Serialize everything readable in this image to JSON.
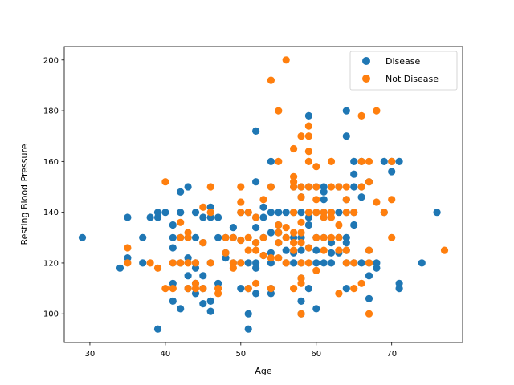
{
  "chart_data": {
    "type": "scatter",
    "title": "",
    "xlabel": "Age",
    "ylabel": "Resting Blood Pressure",
    "xlim": [
      26.6,
      79.4
    ],
    "ylim": [
      88.7,
      205.3
    ],
    "xticks": [
      30,
      40,
      50,
      60,
      70
    ],
    "yticks": [
      100,
      120,
      140,
      160,
      180,
      200
    ],
    "grid": false,
    "legend_position": "top-right",
    "series": [
      {
        "name": "Disease",
        "color": "#1f77b4",
        "points": [
          [
            29,
            130
          ],
          [
            34,
            118
          ],
          [
            35,
            138
          ],
          [
            35,
            122
          ],
          [
            37,
            130
          ],
          [
            37,
            120
          ],
          [
            38,
            138
          ],
          [
            39,
            94
          ],
          [
            39,
            138
          ],
          [
            39,
            140
          ],
          [
            40,
            140
          ],
          [
            41,
            130
          ],
          [
            41,
            126
          ],
          [
            41,
            120
          ],
          [
            41,
            112
          ],
          [
            41,
            105
          ],
          [
            41,
            135
          ],
          [
            42,
            140
          ],
          [
            42,
            148
          ],
          [
            42,
            130
          ],
          [
            42,
            120
          ],
          [
            42,
            102
          ],
          [
            43,
            150
          ],
          [
            43,
            130
          ],
          [
            43,
            122
          ],
          [
            43,
            115
          ],
          [
            43,
            110
          ],
          [
            44,
            140
          ],
          [
            44,
            130
          ],
          [
            44,
            120
          ],
          [
            44,
            118
          ],
          [
            44,
            112
          ],
          [
            44,
            108
          ],
          [
            45,
            138
          ],
          [
            45,
            128
          ],
          [
            45,
            115
          ],
          [
            45,
            110
          ],
          [
            45,
            104
          ],
          [
            46,
            142
          ],
          [
            46,
            138
          ],
          [
            46,
            120
          ],
          [
            46,
            105
          ],
          [
            46,
            101
          ],
          [
            47,
            138
          ],
          [
            47,
            130
          ],
          [
            47,
            112
          ],
          [
            48,
            130
          ],
          [
            48,
            122
          ],
          [
            48,
            124
          ],
          [
            49,
            134
          ],
          [
            49,
            130
          ],
          [
            49,
            120
          ],
          [
            50,
            140
          ],
          [
            50,
            129
          ],
          [
            50,
            120
          ],
          [
            50,
            110
          ],
          [
            51,
            140
          ],
          [
            51,
            120
          ],
          [
            51,
            110
          ],
          [
            51,
            100
          ],
          [
            51,
            94
          ],
          [
            52,
            172
          ],
          [
            52,
            152
          ],
          [
            52,
            138
          ],
          [
            52,
            134
          ],
          [
            52,
            128
          ],
          [
            52,
            120
          ],
          [
            52,
            118
          ],
          [
            52,
            108
          ],
          [
            53,
            142
          ],
          [
            53,
            138
          ],
          [
            53,
            130
          ],
          [
            53,
            123
          ],
          [
            54,
            160
          ],
          [
            54,
            150
          ],
          [
            54,
            140
          ],
          [
            54,
            132
          ],
          [
            54,
            124
          ],
          [
            54,
            120
          ],
          [
            54,
            110
          ],
          [
            54,
            108
          ],
          [
            55,
            140
          ],
          [
            55,
            135
          ],
          [
            55,
            132
          ],
          [
            55,
            128
          ],
          [
            56,
            140
          ],
          [
            56,
            130
          ],
          [
            56,
            125
          ],
          [
            56,
            120
          ],
          [
            57,
            150
          ],
          [
            57,
            140
          ],
          [
            57,
            130
          ],
          [
            57,
            124
          ],
          [
            57,
            120
          ],
          [
            58,
            150
          ],
          [
            58,
            146
          ],
          [
            58,
            140
          ],
          [
            58,
            130
          ],
          [
            58,
            125
          ],
          [
            58,
            120
          ],
          [
            58,
            114
          ],
          [
            58,
            105
          ],
          [
            58,
            100
          ],
          [
            59,
            178
          ],
          [
            59,
            150
          ],
          [
            59,
            138
          ],
          [
            59,
            135
          ],
          [
            59,
            126
          ],
          [
            59,
            110
          ],
          [
            60,
            150
          ],
          [
            60,
            140
          ],
          [
            60,
            130
          ],
          [
            60,
            125
          ],
          [
            60,
            120
          ],
          [
            60,
            102
          ],
          [
            61,
            150
          ],
          [
            61,
            148
          ],
          [
            61,
            145
          ],
          [
            61,
            140
          ],
          [
            61,
            138
          ],
          [
            61,
            130
          ],
          [
            61,
            120
          ],
          [
            62,
            140
          ],
          [
            62,
            128
          ],
          [
            62,
            124
          ],
          [
            62,
            120
          ],
          [
            63,
            150
          ],
          [
            63,
            140
          ],
          [
            63,
            130
          ],
          [
            63,
            124
          ],
          [
            64,
            180
          ],
          [
            64,
            170
          ],
          [
            64,
            145
          ],
          [
            64,
            140
          ],
          [
            64,
            130
          ],
          [
            64,
            128
          ],
          [
            64,
            125
          ],
          [
            64,
            120
          ],
          [
            64,
            110
          ],
          [
            65,
            160
          ],
          [
            65,
            155
          ],
          [
            65,
            150
          ],
          [
            65,
            140
          ],
          [
            65,
            135
          ],
          [
            65,
            120
          ],
          [
            66,
            160
          ],
          [
            66,
            150
          ],
          [
            66,
            146
          ],
          [
            66,
            120
          ],
          [
            67,
            152
          ],
          [
            67,
            125
          ],
          [
            67,
            120
          ],
          [
            67,
            115
          ],
          [
            67,
            106
          ],
          [
            68,
            120
          ],
          [
            68,
            118
          ],
          [
            69,
            160
          ],
          [
            69,
            140
          ],
          [
            70,
            160
          ],
          [
            70,
            156
          ],
          [
            71,
            160
          ],
          [
            71,
            112
          ],
          [
            71,
            110
          ],
          [
            74,
            120
          ],
          [
            76,
            140
          ]
        ]
      },
      {
        "name": "Not Disease",
        "color": "#ff7f0e",
        "points": [
          [
            35,
            126
          ],
          [
            35,
            120
          ],
          [
            38,
            120
          ],
          [
            39,
            118
          ],
          [
            40,
            152
          ],
          [
            40,
            110
          ],
          [
            41,
            110
          ],
          [
            41,
            120
          ],
          [
            42,
            136
          ],
          [
            42,
            130
          ],
          [
            42,
            120
          ],
          [
            43,
            132
          ],
          [
            43,
            130
          ],
          [
            43,
            120
          ],
          [
            43,
            110
          ],
          [
            44,
            120
          ],
          [
            44,
            112
          ],
          [
            44,
            110
          ],
          [
            45,
            142
          ],
          [
            45,
            128
          ],
          [
            45,
            110
          ],
          [
            46,
            150
          ],
          [
            46,
            140
          ],
          [
            46,
            120
          ],
          [
            47,
            110
          ],
          [
            47,
            108
          ],
          [
            48,
            130
          ],
          [
            48,
            124
          ],
          [
            49,
            130
          ],
          [
            49,
            120
          ],
          [
            49,
            118
          ],
          [
            50,
            150
          ],
          [
            50,
            144
          ],
          [
            50,
            140
          ],
          [
            50,
            129
          ],
          [
            50,
            120
          ],
          [
            51,
            140
          ],
          [
            51,
            130
          ],
          [
            51,
            125
          ],
          [
            51,
            110
          ],
          [
            52,
            138
          ],
          [
            52,
            128
          ],
          [
            52,
            125
          ],
          [
            52,
            112
          ],
          [
            53,
            145
          ],
          [
            53,
            130
          ],
          [
            53,
            123
          ],
          [
            54,
            192
          ],
          [
            54,
            150
          ],
          [
            54,
            110
          ],
          [
            54,
            122
          ],
          [
            55,
            180
          ],
          [
            55,
            160
          ],
          [
            55,
            135
          ],
          [
            55,
            132
          ],
          [
            55,
            128
          ],
          [
            55,
            122
          ],
          [
            56,
            200
          ],
          [
            56,
            134
          ],
          [
            56,
            130
          ],
          [
            56,
            120
          ],
          [
            57,
            165
          ],
          [
            57,
            154
          ],
          [
            57,
            152
          ],
          [
            57,
            150
          ],
          [
            57,
            140
          ],
          [
            57,
            132
          ],
          [
            57,
            128
          ],
          [
            57,
            125
          ],
          [
            57,
            110
          ],
          [
            58,
            170
          ],
          [
            58,
            150
          ],
          [
            58,
            146
          ],
          [
            58,
            136
          ],
          [
            58,
            132
          ],
          [
            58,
            128
          ],
          [
            58,
            120
          ],
          [
            58,
            114
          ],
          [
            58,
            112
          ],
          [
            58,
            100
          ],
          [
            59,
            174
          ],
          [
            59,
            170
          ],
          [
            59,
            164
          ],
          [
            59,
            160
          ],
          [
            59,
            150
          ],
          [
            59,
            140
          ],
          [
            59,
            126
          ],
          [
            59,
            120
          ],
          [
            60,
            158
          ],
          [
            60,
            150
          ],
          [
            60,
            145
          ],
          [
            60,
            140
          ],
          [
            60,
            130
          ],
          [
            60,
            117
          ],
          [
            61,
            140
          ],
          [
            61,
            138
          ],
          [
            61,
            130
          ],
          [
            61,
            125
          ],
          [
            62,
            160
          ],
          [
            62,
            150
          ],
          [
            62,
            140
          ],
          [
            62,
            138
          ],
          [
            62,
            130
          ],
          [
            63,
            150
          ],
          [
            63,
            135
          ],
          [
            63,
            130
          ],
          [
            63,
            125
          ],
          [
            63,
            108
          ],
          [
            64,
            150
          ],
          [
            64,
            145
          ],
          [
            64,
            140
          ],
          [
            64,
            125
          ],
          [
            64,
            120
          ],
          [
            65,
            140
          ],
          [
            65,
            120
          ],
          [
            65,
            110
          ],
          [
            66,
            178
          ],
          [
            66,
            160
          ],
          [
            66,
            150
          ],
          [
            66,
            112
          ],
          [
            67,
            160
          ],
          [
            67,
            152
          ],
          [
            67,
            125
          ],
          [
            67,
            120
          ],
          [
            67,
            100
          ],
          [
            68,
            180
          ],
          [
            68,
            144
          ],
          [
            69,
            140
          ],
          [
            70,
            160
          ],
          [
            70,
            145
          ],
          [
            70,
            130
          ],
          [
            77,
            125
          ]
        ]
      }
    ]
  }
}
